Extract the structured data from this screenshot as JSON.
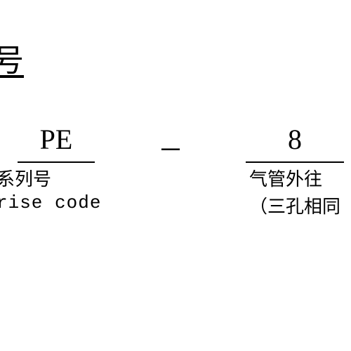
{
  "header": {
    "title": "号"
  },
  "segments": {
    "first": {
      "code": "PE",
      "desc_cn": "系列号",
      "desc_en": "rise code"
    },
    "separator": "－",
    "second": {
      "code": "8",
      "desc_cn": "气管外往",
      "desc_note": "（三孔相同"
    }
  },
  "styling": {
    "background_color": "#ffffff",
    "text_color": "#000000",
    "underline_color": "#000000",
    "header_fontsize": 44,
    "code_fontsize": 40,
    "desc_fontsize": 26,
    "font_family_cn": "SimSun",
    "font_family_code": "Times New Roman",
    "font_family_en": "Courier New"
  }
}
